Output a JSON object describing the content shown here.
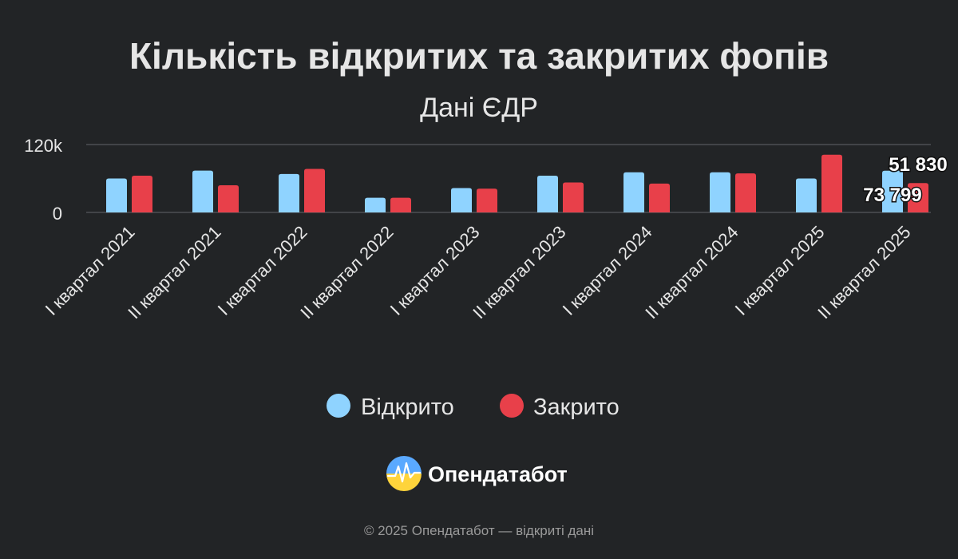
{
  "chart_data": {
    "type": "bar",
    "title": "Кількість відкритих та закритих фопів",
    "subtitle": "Дані ЄДР",
    "categories": [
      "І квартал 2021",
      "ІІ квартал 2021",
      "І квартал 2022",
      "ІІ квартал 2022",
      "І квартал 2023",
      "ІІ квартал 2023",
      "І квартал 2024",
      "ІІ квартал 2024",
      "І квартал 2025",
      "ІІ квартал 2025"
    ],
    "series": [
      {
        "name": "Відкрито",
        "color": "#8fd3ff",
        "values": [
          60000,
          74000,
          68000,
          26000,
          43000,
          65000,
          71000,
          71000,
          60000,
          73799
        ]
      },
      {
        "name": "Закрито",
        "color": "#e8404a",
        "values": [
          65000,
          48000,
          77000,
          26000,
          42000,
          53000,
          51000,
          69000,
          102000,
          51830
        ]
      }
    ],
    "ylim": [
      0,
      120000
    ],
    "yticks": [
      {
        "value": 0,
        "label": "0"
      },
      {
        "value": 120000,
        "label": "120k"
      }
    ],
    "data_labels": [
      {
        "series": 0,
        "category": 9,
        "text": "73 799"
      },
      {
        "series": 1,
        "category": 9,
        "text": "51 830"
      }
    ],
    "legend_position": "bottom",
    "grid": true
  },
  "brand": {
    "name": "Опендатабот",
    "copyright": "© 2025 Опендатабот — відкриті дані"
  },
  "colors": {
    "background": "#222426",
    "text": "#e6e6e6",
    "grid": "#55585c"
  }
}
